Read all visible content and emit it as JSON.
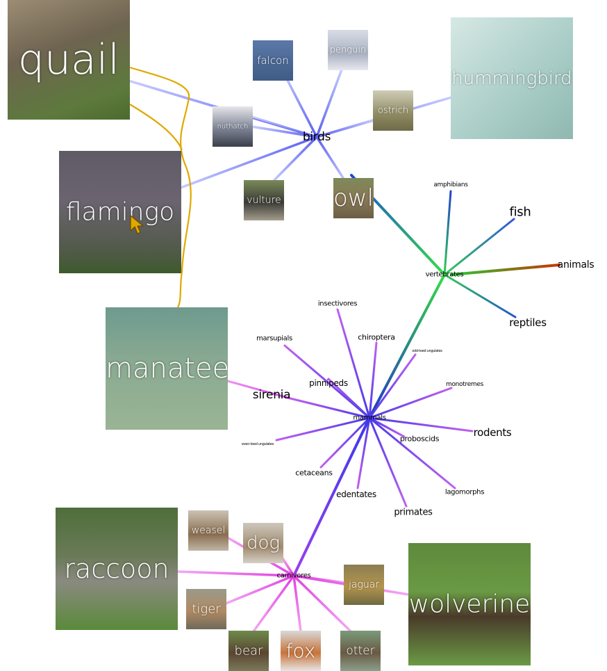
{
  "hubs": {
    "birds": "birds",
    "vertebrates": "vertebrates",
    "mammals": "mammals",
    "carnivores": "carnivores"
  },
  "labels": {
    "amphibians": "amphibians",
    "fish": "fish",
    "animals": "animals",
    "reptiles": "reptiles",
    "insectivores": "insectivores",
    "chiroptera": "chiroptera",
    "marsupials": "marsupials",
    "odd_toed": "odd-toed ungulates",
    "pinnipeds": "pinnipeds",
    "monotremes": "monotremes",
    "sirenia": "sirenia",
    "rodents": "rodents",
    "even_toed": "even-toed ungulates",
    "proboscids": "proboscids",
    "cetaceans": "cetaceans",
    "lagomorphs": "lagomorphs",
    "edentates": "edentates",
    "primates": "primates"
  },
  "images": {
    "quail": "quail",
    "falcon": "falcon",
    "penguin": "penguin",
    "hummingbird": "hummingbird",
    "ostrich": "ostrich",
    "nuthatch": "nuthatch",
    "flamingo": "flamingo",
    "vulture": "vulture",
    "owl": "owl",
    "manatee": "manatee",
    "raccoon": "raccoon",
    "weasel": "weasel",
    "dog": "dog",
    "jaguar": "jaguar",
    "wolverine": "wolverine",
    "tiger": "tiger",
    "bear": "bear",
    "fox": "fox",
    "otter": "otter"
  },
  "colors": {
    "bird_edge": "#5a5ff0",
    "mammal_edge": "#8a2be2",
    "carnivore_edge": "#e040e0",
    "vertebrate_edge": "#22cc33",
    "animal_edge": "#cc3300",
    "annotation_stroke": "#e0a800"
  }
}
